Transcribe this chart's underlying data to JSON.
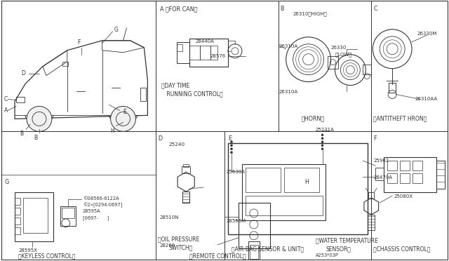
{
  "bg_color": "#ffffff",
  "line_color": "#555555",
  "lc_dark": "#333333",
  "sections": {
    "A_label": "A 〈FOR CAN〉",
    "A_sub": "〈DAY TIME\n RUNNING CONTROL〉",
    "A_parts": [
      "28440A",
      "28576"
    ],
    "B_label": "B",
    "B_sub": "〈HORN〉",
    "B_parts": [
      "26310〈HIGH〉",
      "26310A",
      "26310A",
      "26330\n〈LOW〉"
    ],
    "C_label": "C",
    "C_sub": "〈ANTITHEFT HRON〉",
    "C_parts": [
      "26330M",
      "26310AA"
    ],
    "D_label": "D",
    "D_sub": "〈OIL PRESSURE\n  SWITCH〉",
    "D_parts": [
      "25240"
    ],
    "E_label": "E",
    "E_sub": "〈AIR BAG SENSOR & UNIT〉",
    "E_parts": [
      "25231A",
      "25630A",
      "28556M"
    ],
    "F_label": "F",
    "F_sub": "〈CHASSIS CONTROL〉",
    "F_parts": [
      "25962",
      "28470A"
    ],
    "G_label": "G",
    "G_sub": "〈KEYLESS CONTROL〉",
    "G_parts": [
      "08566-6122A",
      "©2»[0294-0697]",
      "28595A",
      "[0697-      ]",
      "28595X"
    ],
    "H_label": "H",
    "H_sub": "〈WATER TEMPERATURE\n  SENSOR〉",
    "H_parts": [
      "25080X"
    ],
    "remote_sub": "〈REMOTE CONTROL〉",
    "remote_parts": [
      "28510N",
      "28268"
    ]
  },
  "footnote": "A253*03P"
}
